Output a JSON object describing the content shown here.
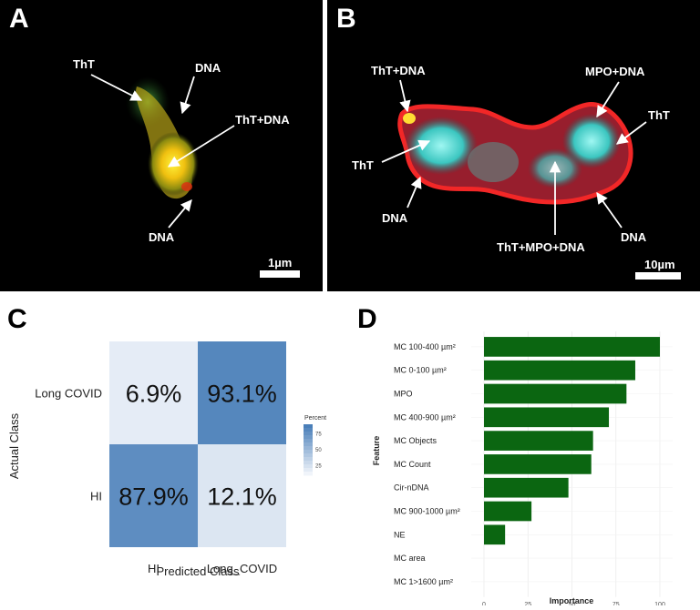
{
  "panels": {
    "a": {
      "letter": "A",
      "labels": {
        "tht": "ThT",
        "dna_top": "DNA",
        "tht_dna": "ThT+DNA",
        "dna_bottom": "DNA"
      },
      "scale_bar": "1µm"
    },
    "b": {
      "letter": "B",
      "labels": {
        "tht_dna": "ThT+DNA",
        "tht_left": "ThT",
        "dna_left": "DNA",
        "mpo_dna": "MPO+DNA",
        "tht_right": "ThT",
        "dna_right": "DNA",
        "tht_mpo_dna": "ThT+MPO+DNA"
      },
      "scale_bar": "10µm"
    },
    "c": {
      "letter": "C"
    },
    "d": {
      "letter": "D"
    }
  },
  "colors": {
    "heat_high": "#4a7fb9",
    "heat_low": "#f0f4fa",
    "bar": "#0b6611"
  },
  "chart_data": [
    {
      "type": "heatmap",
      "title": "",
      "xlabel": "Predicted Class",
      "ylabel": "Actual Class",
      "x_categories": [
        "HI",
        "Long_COVID"
      ],
      "y_categories": [
        "Long COVID",
        "HI"
      ],
      "cells": [
        {
          "actual": "Long COVID",
          "predicted": "HI",
          "value": 6.9,
          "label": "6.9%"
        },
        {
          "actual": "Long COVID",
          "predicted": "Long_COVID",
          "value": 93.1,
          "label": "93.1%"
        },
        {
          "actual": "HI",
          "predicted": "HI",
          "value": 87.9,
          "label": "87.9%"
        },
        {
          "actual": "HI",
          "predicted": "Long_COVID",
          "value": 12.1,
          "label": "12.1%"
        }
      ],
      "legend": {
        "title": "Percent",
        "ticks": [
          "75",
          "50",
          "25"
        ],
        "placement": "right"
      }
    },
    {
      "type": "bar",
      "orientation": "horizontal",
      "title": "",
      "xlabel": "Importance",
      "ylabel": "Feature",
      "categories": [
        "MC 100-400 µm²",
        "MC 0-100 µm²",
        "MPO",
        "MC  400-900 µm²",
        "MC  Objects",
        "MC Count",
        "Cir-nDNA",
        "MC 900-1000 µm²",
        "NE",
        "MC area",
        "MC 1>1600 µm²"
      ],
      "values": [
        100,
        86,
        81,
        71,
        62,
        61,
        48,
        27,
        12,
        0,
        0
      ],
      "xlim": [
        0,
        100
      ],
      "xticks": [
        "0",
        "25",
        "50",
        "75",
        "100"
      ],
      "grid": true
    }
  ]
}
